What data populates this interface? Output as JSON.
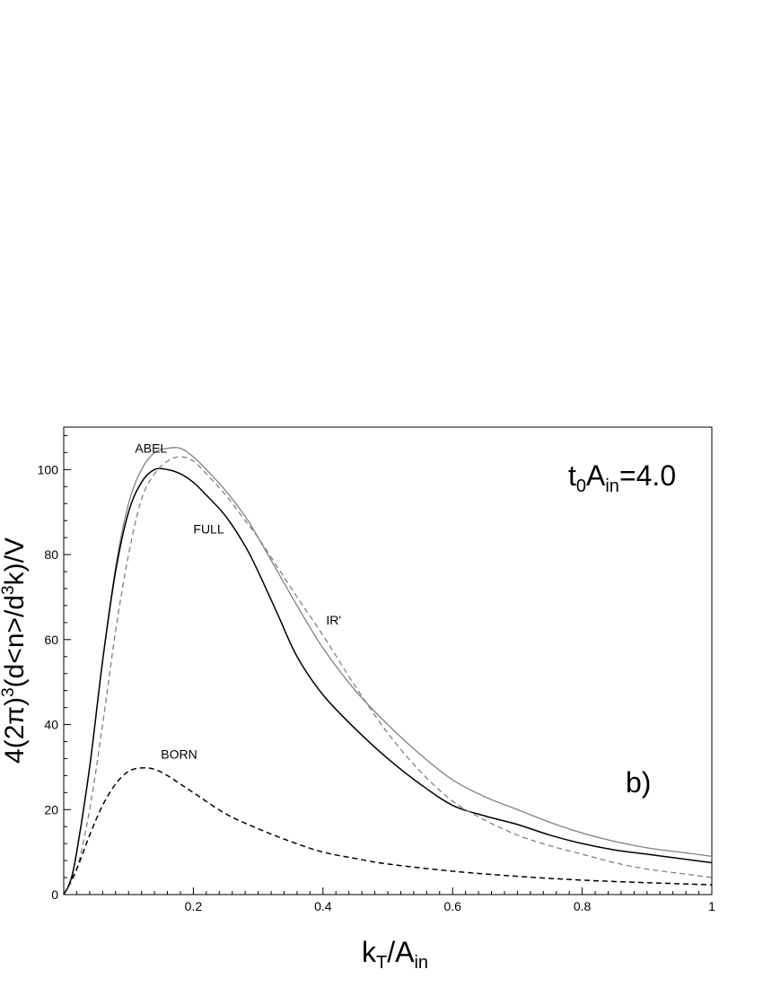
{
  "chart_data": {
    "type": "line",
    "xlabel": {
      "base": "k",
      "sub1": "T",
      "mid": "/A",
      "sub2": "in"
    },
    "ylabel": {
      "p1": "4(2π)",
      "sup1": "3",
      "p2": "(d<n>/d",
      "sup2": "3",
      "p3": "k)/V"
    },
    "xlim": [
      0,
      1
    ],
    "ylim": [
      0,
      110
    ],
    "xticks": [
      0.2,
      0.4,
      0.6,
      0.8,
      1
    ],
    "xtick_labels": [
      "0.2",
      "0.4",
      "0.6",
      "0.8",
      "1"
    ],
    "yticks": [
      0,
      20,
      40,
      60,
      80,
      100
    ],
    "ytick_labels": [
      "0",
      "20",
      "40",
      "60",
      "80",
      "100"
    ],
    "grid": false,
    "annotations": {
      "param": {
        "base": "t",
        "sub1": "0",
        "mid": "A",
        "sub2": "in",
        "tail": "=4.0"
      },
      "panel": "b)"
    },
    "series": [
      {
        "name": "ABEL",
        "color": "#808080",
        "dash": "solid",
        "x": [
          0,
          0.01,
          0.02,
          0.04,
          0.06,
          0.08,
          0.1,
          0.12,
          0.14,
          0.16,
          0.18,
          0.2,
          0.22,
          0.25,
          0.28,
          0.3,
          0.33,
          0.36,
          0.4,
          0.45,
          0.5,
          0.55,
          0.6,
          0.65,
          0.7,
          0.75,
          0.8,
          0.85,
          0.9,
          0.95,
          1.0
        ],
        "y": [
          0,
          3,
          10,
          30,
          55,
          77,
          92,
          100,
          104,
          105,
          105,
          103,
          100,
          95,
          89,
          84,
          76,
          68,
          58,
          48,
          40,
          33,
          27,
          23,
          20,
          17,
          14.5,
          12.5,
          11,
          10,
          9
        ]
      },
      {
        "name": "FULL",
        "color": "#000000",
        "dash": "solid",
        "x": [
          0,
          0.01,
          0.02,
          0.04,
          0.06,
          0.08,
          0.1,
          0.12,
          0.14,
          0.16,
          0.18,
          0.2,
          0.22,
          0.25,
          0.28,
          0.3,
          0.33,
          0.36,
          0.4,
          0.45,
          0.5,
          0.55,
          0.6,
          0.65,
          0.7,
          0.75,
          0.8,
          0.85,
          0.9,
          0.95,
          1.0
        ],
        "y": [
          0,
          3,
          10,
          30,
          55,
          76,
          90,
          97,
          100,
          100,
          99,
          97,
          94,
          89,
          82,
          76,
          66,
          56,
          47,
          39,
          32,
          26,
          21,
          18.5,
          16.5,
          14,
          12,
          10.5,
          9.5,
          8.5,
          7.5
        ]
      },
      {
        "name": "IR'",
        "color": "#808080",
        "dash": "dashed",
        "x": [
          0,
          0.02,
          0.04,
          0.06,
          0.08,
          0.1,
          0.12,
          0.14,
          0.16,
          0.18,
          0.2,
          0.22,
          0.25,
          0.28,
          0.3,
          0.33,
          0.36,
          0.4,
          0.45,
          0.5,
          0.55,
          0.6,
          0.65,
          0.7,
          0.75,
          0.8,
          0.85,
          0.9,
          0.95,
          1.0
        ],
        "y": [
          0,
          6,
          20,
          40,
          62,
          80,
          93,
          99,
          102,
          103,
          102,
          99,
          94,
          88,
          84,
          77,
          70,
          61,
          49,
          38,
          29,
          22,
          17.5,
          14,
          11.5,
          9.5,
          7.5,
          6,
          5,
          4
        ]
      },
      {
        "name": "BORN",
        "color": "#000000",
        "dash": "dashed",
        "x": [
          0,
          0.02,
          0.04,
          0.06,
          0.08,
          0.1,
          0.12,
          0.14,
          0.16,
          0.18,
          0.2,
          0.25,
          0.3,
          0.35,
          0.4,
          0.45,
          0.5,
          0.6,
          0.7,
          0.8,
          0.9,
          1.0
        ],
        "y": [
          0,
          6,
          14,
          21,
          26,
          29,
          29.8,
          29.5,
          28,
          26,
          24,
          19,
          15.5,
          12.5,
          10,
          8.5,
          7.2,
          5.5,
          4.3,
          3.4,
          2.8,
          2.3
        ]
      }
    ],
    "curve_labels": [
      {
        "text": "ABEL",
        "x": 0.11,
        "y": 104
      },
      {
        "text": "FULL",
        "x": 0.2,
        "y": 85
      },
      {
        "text": "IR'",
        "x": 0.405,
        "y": 63.5
      },
      {
        "text": "BORN",
        "x": 0.15,
        "y": 32
      }
    ]
  }
}
